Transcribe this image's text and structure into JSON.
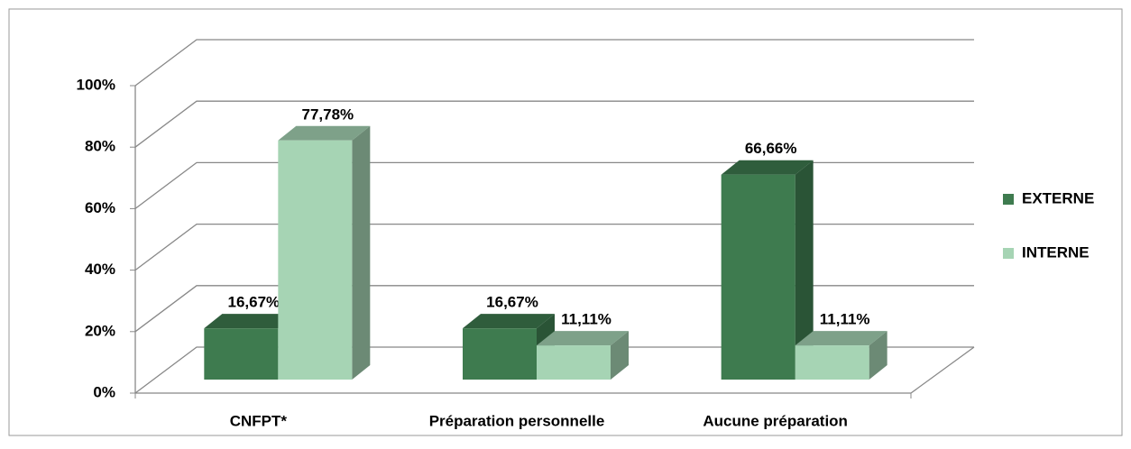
{
  "chart_data": {
    "type": "bar3d",
    "categories": [
      "CNFPT*",
      "Préparation personnelle",
      "Aucune préparation"
    ],
    "series": [
      {
        "name": "EXTERNE",
        "color": "#3e7b4f",
        "values": [
          16.67,
          16.67,
          66.66
        ],
        "value_labels": [
          "16,67%",
          "16,67%",
          "66,66%"
        ]
      },
      {
        "name": "INTERNE",
        "color": "#a6d4b4",
        "values": [
          77.78,
          11.11,
          11.11
        ],
        "value_labels": [
          "77,78%",
          "11,11%",
          "11,11%"
        ]
      }
    ],
    "ylim": [
      0,
      100
    ],
    "yticks": [
      {
        "value": 0,
        "label": "0%"
      },
      {
        "value": 20,
        "label": "20%"
      },
      {
        "value": 40,
        "label": "40%"
      },
      {
        "value": 60,
        "label": "60%"
      },
      {
        "value": 80,
        "label": "80%"
      },
      {
        "value": 100,
        "label": "100%"
      }
    ],
    "grid": true,
    "legend": "right"
  }
}
